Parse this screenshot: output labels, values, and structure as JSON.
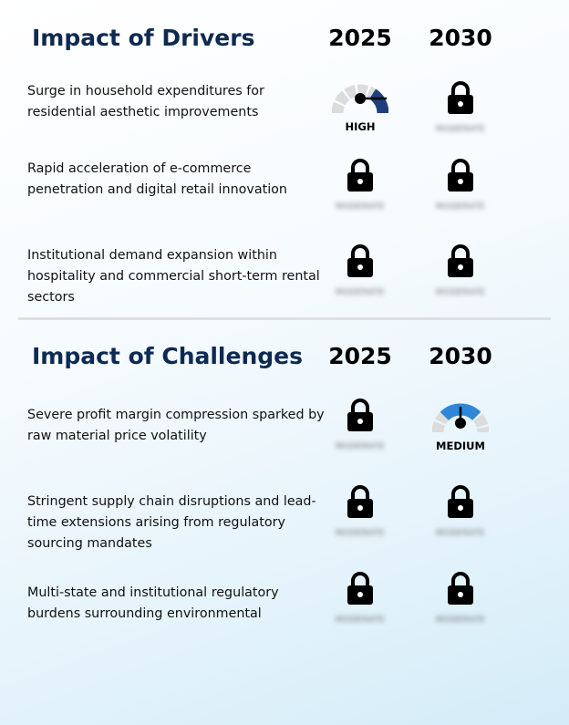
{
  "drivers": {
    "title": "Impact of Drivers",
    "year_1": "2025",
    "year_2": "2030",
    "rows": [
      {
        "text": "Surge in household expenditures for residential aesthetic improvements",
        "y2025": {
          "type": "gauge",
          "level": "HIGH"
        },
        "y2030": {
          "type": "locked",
          "blurred_label": "MODERATE"
        }
      },
      {
        "text": "Rapid acceleration of e-commerce penetration and digital retail innovation",
        "y2025": {
          "type": "locked",
          "blurred_label": "MODERATE"
        },
        "y2030": {
          "type": "locked",
          "blurred_label": "MODERATE"
        }
      },
      {
        "text": "Institutional demand expansion within hospitality and commercial short-term rental sectors",
        "y2025": {
          "type": "locked",
          "blurred_label": "MODERATE"
        },
        "y2030": {
          "type": "locked",
          "blurred_label": "MODERATE"
        }
      }
    ]
  },
  "challenges": {
    "title": "Impact of Challenges",
    "year_1": "2025",
    "year_2": "2030",
    "rows": [
      {
        "text": "Severe profit margin compression sparked by raw material price volatility",
        "y2025": {
          "type": "locked",
          "blurred_label": "MODERATE"
        },
        "y2030": {
          "type": "gauge",
          "level": "MEDIUM"
        }
      },
      {
        "text": "Stringent supply chain disruptions and lead-time extensions arising from regulatory sourcing mandates",
        "y2025": {
          "type": "locked",
          "blurred_label": "MODERATE"
        },
        "y2030": {
          "type": "locked",
          "blurred_label": "MODERATE"
        }
      },
      {
        "text": "Multi-state and institutional regulatory burdens surrounding environmental",
        "y2025": {
          "type": "locked",
          "blurred_label": "MODERATE"
        },
        "y2030": {
          "type": "locked",
          "blurred_label": "MODERATE"
        }
      }
    ]
  },
  "colors": {
    "title": "#0e2a52",
    "gauge_high": "#1e3f7a",
    "gauge_medium": "#2f86d6",
    "gauge_track": "#dcdcdc",
    "divider": "#dcdfe3"
  },
  "icons": {
    "locked": "padlock-icon",
    "gauge": "gauge-icon"
  }
}
